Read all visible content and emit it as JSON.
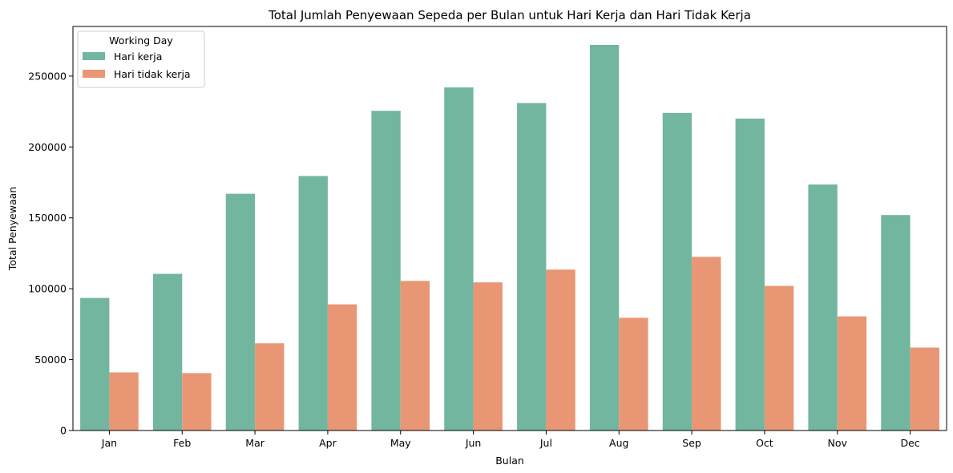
{
  "chart_data": {
    "type": "bar",
    "title": "Total Jumlah Penyewaan Sepeda per Bulan untuk Hari Kerja dan Hari Tidak Kerja",
    "xlabel": "Bulan",
    "ylabel": "Total Penyewaan",
    "categories": [
      "Jan",
      "Feb",
      "Mar",
      "Apr",
      "May",
      "Jun",
      "Jul",
      "Aug",
      "Sep",
      "Oct",
      "Nov",
      "Dec"
    ],
    "ylim": [
      0,
      285000
    ],
    "yticks": [
      0,
      50000,
      100000,
      150000,
      200000,
      250000
    ],
    "ytick_labels": [
      "0",
      "50000",
      "100000",
      "150000",
      "200000",
      "250000"
    ],
    "series": [
      {
        "name": "Hari kerja",
        "color": "#72b6a0",
        "values": [
          93500,
          110500,
          167000,
          179500,
          225500,
          242000,
          231000,
          272000,
          224000,
          220000,
          173500,
          152000
        ]
      },
      {
        "name": "Hari tidak kerja",
        "color": "#e99675",
        "values": [
          41000,
          40500,
          61500,
          89000,
          105500,
          104500,
          113500,
          79500,
          122500,
          102000,
          80500,
          58500
        ]
      }
    ],
    "legend": {
      "title": "Working Day",
      "position": "top-left"
    },
    "grid": false
  }
}
